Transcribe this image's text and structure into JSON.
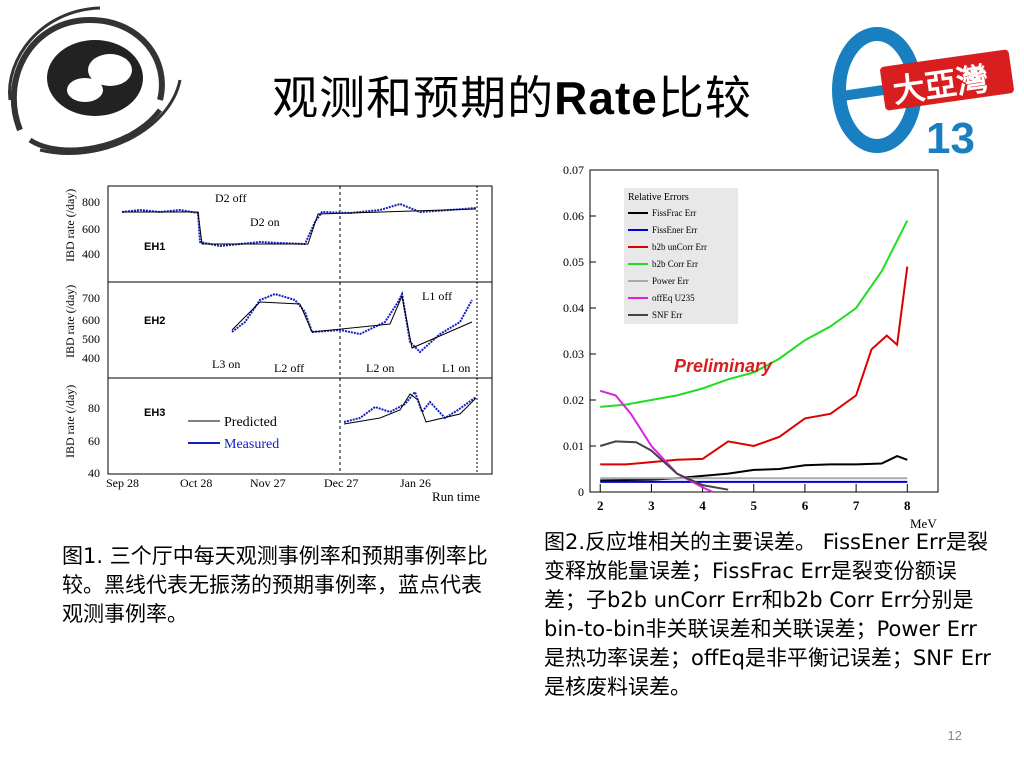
{
  "title": "观测和预期的Rate比较",
  "logo_right_text": "大亞灣",
  "logo_right_num": "13",
  "figure1": {
    "ylabel": "IBD rate (/day)",
    "halls": [
      "EH1",
      "EH2",
      "EH3"
    ],
    "eh1_ticks": [
      "800",
      "600",
      "400"
    ],
    "eh2_ticks": [
      "700",
      "600",
      "500",
      "400"
    ],
    "eh3_ticks": [
      "80",
      "60",
      "40"
    ],
    "x_ticks": [
      "Sep 28",
      "Oct 28",
      "Nov 27",
      "Dec 27",
      "Jan 26"
    ],
    "xlabel": "Run time",
    "annotations": [
      "D2 off",
      "D2 on",
      "L1 off",
      "L3 on",
      "L2 off",
      "L2 on",
      "L1 on"
    ],
    "legend": [
      "Predicted",
      "Measured"
    ]
  },
  "figure2": {
    "legend_title": "Relative Errors",
    "preliminary": "Preliminary",
    "xlabel": "MeV",
    "x_ticks": [
      "2",
      "3",
      "4",
      "5",
      "6",
      "7",
      "8"
    ],
    "y_ticks": [
      "0",
      "0.01",
      "0.02",
      "0.03",
      "0.04",
      "0.05",
      "0.06",
      "0.07"
    ]
  },
  "chart_data": {
    "type": "line",
    "xlabel": "MeV",
    "ylabel": "",
    "xlim": [
      1.8,
      8.6
    ],
    "ylim": [
      0,
      0.07
    ],
    "legend_title": "Relative Errors",
    "series": [
      {
        "name": "FissFrac Err",
        "color": "#000000",
        "x": [
          2,
          2.5,
          3,
          3.5,
          4,
          4.5,
          5,
          5.5,
          6,
          6.5,
          7,
          7.5,
          7.8,
          8
        ],
        "values": [
          0.0025,
          0.0026,
          0.0027,
          0.003,
          0.0035,
          0.004,
          0.0048,
          0.005,
          0.0058,
          0.006,
          0.006,
          0.0062,
          0.0078,
          0.007
        ]
      },
      {
        "name": "FissEner Err",
        "color": "#0000dd",
        "x": [
          2,
          8
        ],
        "values": [
          0.0022,
          0.0022
        ]
      },
      {
        "name": "b2b unCorr Err",
        "color": "#dd0000",
        "x": [
          2,
          2.5,
          3,
          3.5,
          4,
          4.5,
          5,
          5.5,
          6,
          6.5,
          7,
          7.3,
          7.6,
          7.8,
          8
        ],
        "values": [
          0.006,
          0.006,
          0.0065,
          0.007,
          0.0072,
          0.011,
          0.01,
          0.012,
          0.016,
          0.017,
          0.021,
          0.031,
          0.034,
          0.032,
          0.049
        ]
      },
      {
        "name": "b2b Corr Err",
        "color": "#22dd22",
        "x": [
          2,
          2.5,
          3,
          3.5,
          4,
          4.5,
          5,
          5.5,
          6,
          6.5,
          7,
          7.5,
          8
        ],
        "values": [
          0.0185,
          0.019,
          0.02,
          0.021,
          0.0225,
          0.0245,
          0.026,
          0.029,
          0.033,
          0.036,
          0.04,
          0.048,
          0.059
        ]
      },
      {
        "name": "Power Err",
        "color": "#aaaaaa",
        "x": [
          2,
          8
        ],
        "values": [
          0.003,
          0.003
        ]
      },
      {
        "name": "offEq U235",
        "color": "#dd22dd",
        "x": [
          2,
          2.3,
          2.6,
          3,
          3.5,
          4,
          4.2
        ],
        "values": [
          0.022,
          0.021,
          0.017,
          0.01,
          0.004,
          0.001,
          0.0
        ]
      },
      {
        "name": "SNF Err",
        "color": "#444444",
        "x": [
          2,
          2.3,
          2.7,
          3,
          3.5,
          4,
          4.5
        ],
        "values": [
          0.01,
          0.011,
          0.0108,
          0.009,
          0.004,
          0.0015,
          0.0005
        ]
      }
    ]
  },
  "caption1": "图1. 三个厅中每天观测事例率和预期事例率比较。黑线代表无振荡的预期事例率，蓝点代表观测事例率。",
  "caption2": "图2.反应堆相关的主要误差。 FissEner Err是裂变释放能量误差；FissFrac Err是裂变份额误差；子b2b unCorr Err和b2b Corr Err分别是bin-to-bin非关联误差和关联误差；Power Err是热功率误差；offEq是非平衡记误差；SNF Err是核废料误差。",
  "page_number": "12"
}
